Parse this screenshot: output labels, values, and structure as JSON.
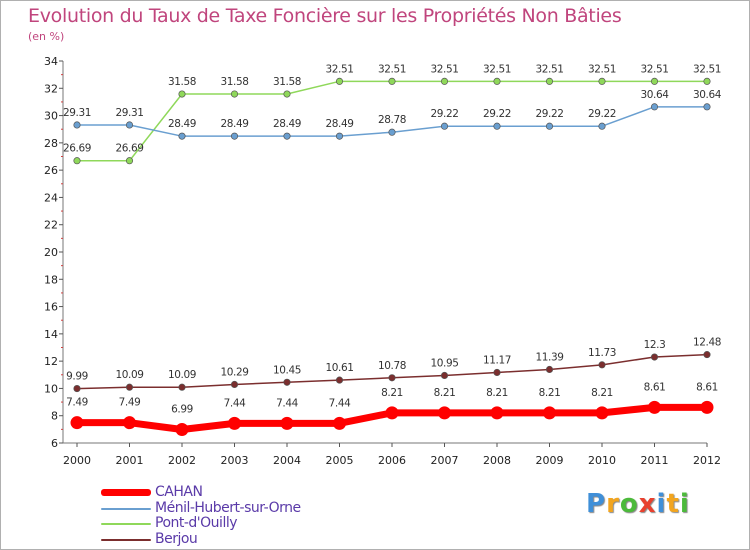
{
  "chart_data": {
    "type": "line",
    "title": "Evolution du Taux de Taxe Foncière sur les Propriétés Non Bâties",
    "subtitle": "(en %)",
    "xlabel": "",
    "ylabel": "",
    "ylim": [
      6,
      34
    ],
    "y_ticks": [
      "6",
      "8",
      "10",
      "12",
      "14",
      "16",
      "18",
      "20",
      "22",
      "24",
      "26",
      "28",
      "30",
      "32",
      "34"
    ],
    "categories": [
      "2000",
      "2001",
      "2002",
      "2003",
      "2004",
      "2005",
      "2006",
      "2007",
      "2008",
      "2009",
      "2010",
      "2011",
      "2012"
    ],
    "legend_position": "bottom-left",
    "series": [
      {
        "name": "CAHAN",
        "color": "#ff0000",
        "values": [
          7.49,
          7.49,
          6.99,
          7.44,
          7.44,
          7.44,
          8.21,
          8.21,
          8.21,
          8.21,
          8.21,
          8.61,
          8.61
        ],
        "labels": [
          "7.49",
          "7.49",
          "6.99",
          "7.44",
          "7.44",
          "7.44",
          "8.21",
          "8.21",
          "8.21",
          "8.21",
          "8.21",
          "8.61",
          "8.61"
        ]
      },
      {
        "name": "Ménil-Hubert-sur-Orne",
        "color": "#6a9fd0",
        "values": [
          29.31,
          29.31,
          28.49,
          28.49,
          28.49,
          28.49,
          28.78,
          29.22,
          29.22,
          29.22,
          29.22,
          30.64,
          30.64
        ],
        "labels": [
          "29.31",
          "29.31",
          "28.49",
          "28.49",
          "28.49",
          "28.49",
          "28.78",
          "29.22",
          "29.22",
          "29.22",
          "29.22",
          "30.64",
          "30.64"
        ]
      },
      {
        "name": "Pont-d'Ouilly",
        "color": "#8fd85a",
        "values": [
          26.69,
          26.69,
          31.58,
          31.58,
          31.58,
          32.51,
          32.51,
          32.51,
          32.51,
          32.51,
          32.51,
          32.51,
          32.51
        ],
        "labels": [
          "26.69",
          "26.69",
          "31.58",
          "31.58",
          "31.58",
          "32.51",
          "32.51",
          "32.51",
          "32.51",
          "32.51",
          "32.51",
          "32.51",
          "32.51"
        ]
      },
      {
        "name": "Berjou",
        "color": "#7b2e2e",
        "values": [
          9.99,
          10.09,
          10.09,
          10.29,
          10.45,
          10.61,
          10.78,
          10.95,
          11.17,
          11.39,
          11.73,
          12.3,
          12.48
        ],
        "labels": [
          "9.99",
          "10.09",
          "10.09",
          "10.29",
          "10.45",
          "10.61",
          "10.78",
          "10.95",
          "11.17",
          "11.39",
          "11.73",
          "12.3",
          "12.48"
        ]
      }
    ]
  },
  "brand": {
    "letters": [
      "P",
      "r",
      "o",
      "x",
      "i",
      "t",
      "i"
    ],
    "colors": [
      "#3f8fd8",
      "#f2a51f",
      "#4cba3b",
      "#e8412f",
      "#3f8fd8",
      "#f2a51f",
      "#4cba3b"
    ]
  }
}
